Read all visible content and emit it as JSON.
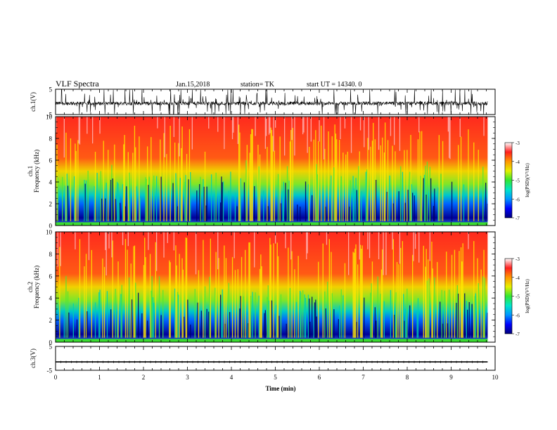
{
  "header": {
    "title": "VLF Spectra",
    "date": "Jan.15,2018",
    "station": "station= TK",
    "start_time": "start UT = 14340. 0"
  },
  "colors": {
    "colormap": [
      "#00007a",
      "#0000ff",
      "#0096ff",
      "#00e6c8",
      "#32e632",
      "#e6f000",
      "#ff9600",
      "#ff1e1e",
      "#ffffff"
    ],
    "waveform": "#000000"
  },
  "chart_data": [
    {
      "type": "line",
      "name": "ch1-waveform",
      "ylabel": "ch.1(V)",
      "ylim": [
        -5,
        5
      ],
      "yticks": [
        "5",
        "-5"
      ],
      "xlim": [
        0,
        10
      ],
      "description_of_signal": "dense noisy waveform centred near -0.5 V with spikes toward ±5 V"
    },
    {
      "type": "heatmap",
      "name": "ch1-spectrogram",
      "ylabel": "ch.1 Frequency (kHz)",
      "ylim": [
        0,
        10
      ],
      "yticks": [
        "10",
        "8",
        "6",
        "4",
        "2",
        "0"
      ],
      "xlim": [
        0,
        10
      ],
      "colorbar": {
        "label": "log(PSD)(V²/Hz)",
        "range": [
          -7,
          -3
        ],
        "ticks": [
          "-3",
          "-4",
          "-5",
          "-6",
          "-7"
        ]
      }
    },
    {
      "type": "heatmap",
      "name": "ch2-spectrogram",
      "ylabel": "ch.2 Frequency (kHz)",
      "ylim": [
        0,
        10
      ],
      "yticks": [
        "10",
        "8",
        "6",
        "4",
        "2",
        "0"
      ],
      "xlim": [
        0,
        10
      ],
      "colorbar": {
        "label": "log(PSD)(V²/Hz)",
        "range": [
          -7,
          -3
        ],
        "ticks": [
          "-3",
          "-4",
          "-5",
          "-6",
          "-7"
        ]
      }
    },
    {
      "type": "line",
      "name": "ch3-waveform",
      "ylabel": "ch.3(V)",
      "ylim": [
        -5,
        5
      ],
      "yticks": [
        "5",
        "-5"
      ],
      "xlim": [
        0,
        10
      ],
      "constant_value": -1.5
    }
  ],
  "xaxis": {
    "label": "Time (min)",
    "ticks": [
      "0",
      "1",
      "2",
      "3",
      "4",
      "5",
      "6",
      "7",
      "8",
      "9",
      "10"
    ]
  }
}
